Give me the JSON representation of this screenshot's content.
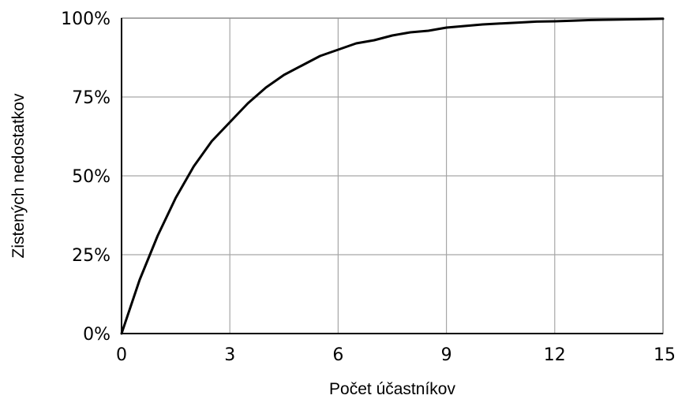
{
  "chart_data": {
    "type": "line",
    "title": "",
    "xlabel": "Počet účastníkov",
    "ylabel": "Zistených nedostatkov",
    "xlim": [
      0,
      15
    ],
    "ylim": [
      0,
      100
    ],
    "x_ticks": [
      "0",
      "3",
      "6",
      "9",
      "12",
      "15"
    ],
    "y_ticks": [
      "0%",
      "25%",
      "50%",
      "75%",
      "100%"
    ],
    "grid": true,
    "legend": "none",
    "series": [
      {
        "x": [
          0,
          0.5,
          1,
          1.5,
          2,
          2.5,
          3,
          3.5,
          4,
          4.5,
          5,
          5.5,
          6,
          6.5,
          7,
          7.5,
          8,
          8.5,
          9,
          9.5,
          10,
          10.5,
          11,
          11.5,
          12,
          12.5,
          13,
          13.5,
          14,
          14.5,
          15
        ],
        "y": [
          0,
          17,
          31,
          43,
          53,
          61,
          67,
          73,
          78,
          82,
          85,
          88,
          90,
          92,
          93,
          94.5,
          95.5,
          96,
          97,
          97.5,
          98,
          98.3,
          98.6,
          98.9,
          99,
          99.2,
          99.4,
          99.5,
          99.6,
          99.7,
          99.8
        ]
      }
    ]
  }
}
